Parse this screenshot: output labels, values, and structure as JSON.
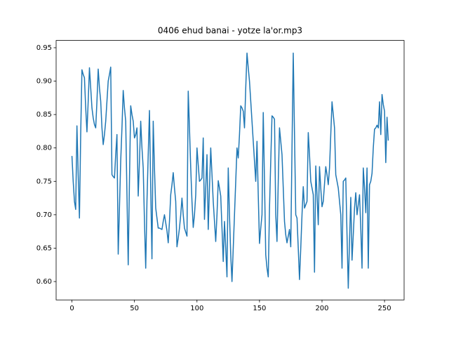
{
  "chart_data": {
    "type": "line",
    "title": "0406 ehud banai - yotze la'or.mp3",
    "x": [
      0,
      1,
      2,
      3,
      4,
      5,
      6,
      7,
      8,
      9,
      10,
      11,
      12,
      13,
      14,
      15,
      16,
      17,
      18,
      19,
      20,
      21,
      22,
      23,
      24,
      25,
      26,
      27,
      28,
      29,
      30,
      31,
      32,
      33,
      34,
      35,
      36,
      37,
      38,
      39,
      40,
      41,
      42,
      43,
      44,
      45,
      46,
      47,
      48,
      49,
      50,
      51,
      52,
      53,
      54,
      55,
      56,
      57,
      58,
      59,
      60,
      61,
      62,
      63,
      64,
      65,
      66,
      67,
      68,
      69,
      70,
      71,
      72,
      73,
      74,
      75,
      76,
      77,
      78,
      79,
      80,
      81,
      82,
      83,
      84,
      85,
      86,
      87,
      88,
      89,
      90,
      91,
      92,
      93,
      94,
      95,
      96,
      97,
      98,
      99,
      100,
      101,
      102,
      103,
      104,
      105,
      106,
      107,
      108,
      109,
      110,
      111,
      112,
      113,
      114,
      115,
      116,
      117,
      118,
      119,
      120,
      121,
      122,
      123,
      124,
      125,
      126,
      127,
      128,
      129,
      130,
      131,
      132,
      133,
      134,
      135,
      136,
      137,
      138,
      139,
      140,
      141,
      142,
      143,
      144,
      145,
      146,
      147,
      148,
      149,
      150,
      151,
      152,
      153,
      154,
      155,
      156,
      157,
      158,
      159,
      160,
      161,
      162,
      163,
      164,
      165,
      166,
      167,
      168,
      169,
      170,
      171,
      172,
      173,
      174,
      175,
      176,
      177,
      178,
      179,
      180,
      181,
      182,
      183,
      184,
      185,
      186,
      187,
      188,
      189,
      190,
      191,
      192,
      193,
      194,
      195,
      196,
      197,
      198,
      199,
      200,
      201,
      202,
      203,
      204,
      205,
      206,
      207,
      208,
      209,
      210,
      211,
      212,
      213,
      214,
      215,
      216,
      217,
      218,
      219,
      220,
      221,
      222,
      223,
      224,
      225,
      226,
      227,
      228,
      229,
      230,
      231,
      232,
      233,
      234,
      235,
      236,
      237,
      238,
      239,
      240,
      241,
      242,
      243,
      244,
      245,
      246,
      247,
      248,
      249,
      250,
      251,
      252,
      253
    ],
    "series": [
      {
        "color": "#1f77b4",
        "values": [
          0.788,
          0.75,
          0.72,
          0.708,
          0.833,
          0.76,
          0.695,
          0.82,
          0.917,
          0.91,
          0.905,
          0.86,
          0.824,
          0.87,
          0.92,
          0.89,
          0.86,
          0.845,
          0.835,
          0.83,
          0.87,
          0.918,
          0.89,
          0.87,
          0.83,
          0.805,
          0.82,
          0.84,
          0.87,
          0.9,
          0.91,
          0.921,
          0.76,
          0.757,
          0.755,
          0.79,
          0.82,
          0.641,
          0.71,
          0.78,
          0.83,
          0.886,
          0.86,
          0.84,
          0.73,
          0.625,
          0.75,
          0.863,
          0.85,
          0.84,
          0.815,
          0.82,
          0.83,
          0.728,
          0.78,
          0.84,
          0.8,
          0.77,
          0.69,
          0.62,
          0.72,
          0.79,
          0.856,
          0.74,
          0.634,
          0.84,
          0.77,
          0.71,
          0.695,
          0.68,
          0.68,
          0.679,
          0.678,
          0.69,
          0.7,
          0.688,
          0.676,
          0.658,
          0.69,
          0.73,
          0.745,
          0.763,
          0.74,
          0.72,
          0.652,
          0.665,
          0.68,
          0.7,
          0.725,
          0.7,
          0.68,
          0.674,
          0.668,
          0.885,
          0.83,
          0.77,
          0.72,
          0.681,
          0.7,
          0.73,
          0.8,
          0.775,
          0.75,
          0.752,
          0.755,
          0.815,
          0.693,
          0.74,
          0.79,
          0.678,
          0.74,
          0.8,
          0.76,
          0.72,
          0.69,
          0.66,
          0.7,
          0.751,
          0.74,
          0.728,
          0.68,
          0.63,
          0.69,
          0.65,
          0.607,
          0.77,
          0.7,
          0.64,
          0.6,
          0.65,
          0.7,
          0.75,
          0.8,
          0.785,
          0.82,
          0.863,
          0.86,
          0.855,
          0.83,
          0.89,
          0.942,
          0.92,
          0.9,
          0.87,
          0.84,
          0.81,
          0.78,
          0.75,
          0.81,
          0.73,
          0.657,
          0.68,
          0.7,
          0.853,
          0.75,
          0.64,
          0.62,
          0.607,
          0.71,
          0.78,
          0.848,
          0.846,
          0.843,
          0.7,
          0.66,
          0.75,
          0.83,
          0.81,
          0.79,
          0.74,
          0.69,
          0.67,
          0.658,
          0.668,
          0.678,
          0.652,
          0.8,
          0.942,
          0.82,
          0.7,
          0.695,
          0.65,
          0.603,
          0.65,
          0.7,
          0.742,
          0.71,
          0.715,
          0.72,
          0.823,
          0.79,
          0.75,
          0.74,
          0.73,
          0.614,
          0.773,
          0.73,
          0.685,
          0.772,
          0.74,
          0.712,
          0.72,
          0.746,
          0.772,
          0.76,
          0.745,
          0.77,
          0.82,
          0.869,
          0.85,
          0.83,
          0.76,
          0.75,
          0.74,
          0.72,
          0.7,
          0.62,
          0.75,
          0.752,
          0.755,
          0.67,
          0.59,
          0.66,
          0.726,
          0.632,
          0.67,
          0.71,
          0.733,
          0.7,
          0.715,
          0.73,
          0.68,
          0.62,
          0.77,
          0.74,
          0.703,
          0.77,
          0.62,
          0.745,
          0.75,
          0.762,
          0.8,
          0.828,
          0.83,
          0.834,
          0.83,
          0.869,
          0.82,
          0.88,
          0.865,
          0.855,
          0.778,
          0.846,
          0.811
        ]
      }
    ],
    "xlim": [
      -12.65,
      265.65
    ],
    "xticks": [
      0,
      50,
      100,
      150,
      200,
      250
    ],
    "ylim": [
      0.5725,
      0.9609
    ],
    "yticks": [
      {
        "value": 0.6,
        "label": "0.60"
      },
      0.65,
      {
        "value": 0.7,
        "label": "0.70"
      },
      0.75,
      {
        "value": 0.8,
        "label": "0.80"
      },
      0.85,
      {
        "value": 0.9,
        "label": "0.90"
      },
      0.95
    ]
  }
}
